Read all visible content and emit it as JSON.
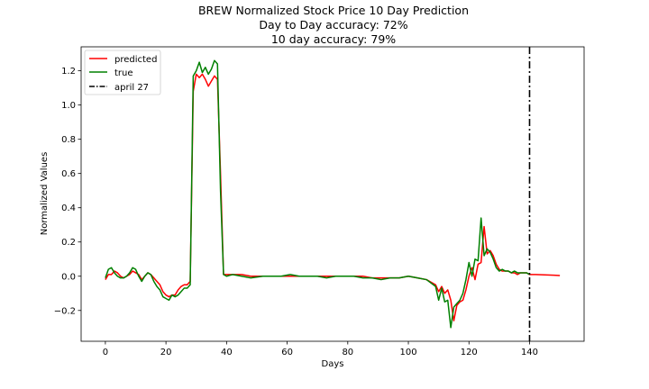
{
  "chart_data": {
    "type": "line",
    "title": "BREW Normalized Stock Price 10 Day Prediction",
    "subtitle_lines": [
      "Day to Day accuracy: 72%",
      "10 day accuracy: 79%"
    ],
    "xlabel": "Days",
    "ylabel": "Normalized Values",
    "xlim": [
      -8,
      158
    ],
    "ylim": [
      -0.38,
      1.34
    ],
    "xticks": [
      0,
      20,
      40,
      60,
      80,
      100,
      120,
      140
    ],
    "yticks": [
      -0.2,
      0.0,
      0.2,
      0.4,
      0.6,
      0.8,
      1.0,
      1.2
    ],
    "ytick_labels": [
      "−0.2",
      "0.0",
      "0.2",
      "0.4",
      "0.6",
      "0.8",
      "1.0",
      "1.2"
    ],
    "grid": false,
    "legend_position": "top-left",
    "series": [
      {
        "name": "predicted",
        "color": "#ff0000",
        "x": [
          0,
          1,
          2,
          3,
          4,
          5,
          6,
          7,
          8,
          9,
          10,
          11,
          12,
          13,
          14,
          15,
          16,
          17,
          18,
          19,
          20,
          21,
          22,
          23,
          24,
          25,
          26,
          27,
          28,
          29,
          30,
          31,
          32,
          33,
          34,
          35,
          36,
          37,
          38,
          39,
          40,
          42,
          45,
          48,
          52,
          55,
          58,
          61,
          64,
          67,
          70,
          73,
          76,
          79,
          82,
          85,
          88,
          91,
          94,
          97,
          100,
          103,
          106,
          109,
          110,
          111,
          112,
          113,
          114,
          115,
          116,
          117,
          118,
          119,
          120,
          121,
          122,
          123,
          124,
          125,
          126,
          127,
          128,
          129,
          130,
          131,
          132,
          133,
          134,
          135,
          136,
          137,
          138,
          139,
          140,
          142,
          145,
          148,
          150
        ],
        "values": [
          -0.02,
          0.01,
          0.01,
          0.03,
          0.02,
          0.0,
          -0.01,
          0.0,
          0.01,
          0.03,
          0.02,
          0.01,
          -0.02,
          0.0,
          0.02,
          0.01,
          -0.01,
          -0.03,
          -0.05,
          -0.09,
          -0.11,
          -0.12,
          -0.11,
          -0.11,
          -0.08,
          -0.06,
          -0.05,
          -0.05,
          -0.03,
          1.08,
          1.18,
          1.16,
          1.18,
          1.15,
          1.11,
          1.14,
          1.17,
          1.15,
          0.6,
          0.01,
          0.01,
          0.01,
          0.01,
          0.0,
          0.0,
          0.0,
          0.0,
          0.0,
          0.0,
          0.0,
          0.0,
          0.0,
          0.0,
          0.0,
          0.0,
          0.0,
          -0.01,
          -0.01,
          -0.01,
          -0.01,
          0.0,
          -0.01,
          -0.02,
          -0.05,
          -0.09,
          -0.06,
          -0.1,
          -0.08,
          -0.14,
          -0.26,
          -0.17,
          -0.15,
          -0.14,
          -0.08,
          0.0,
          0.05,
          -0.02,
          0.07,
          0.08,
          0.29,
          0.13,
          0.15,
          0.12,
          0.07,
          0.04,
          0.03,
          0.03,
          0.03,
          0.02,
          0.02,
          0.01,
          0.02,
          0.02,
          0.02,
          0.01,
          0.01,
          0.008,
          0.006,
          0.004
        ]
      },
      {
        "name": "true",
        "color": "#008000",
        "x": [
          0,
          1,
          2,
          3,
          4,
          5,
          6,
          7,
          8,
          9,
          10,
          11,
          12,
          13,
          14,
          15,
          16,
          17,
          18,
          19,
          20,
          21,
          22,
          23,
          24,
          25,
          26,
          27,
          28,
          29,
          30,
          31,
          32,
          33,
          34,
          35,
          36,
          37,
          38,
          39,
          40,
          42,
          45,
          48,
          52,
          55,
          58,
          61,
          64,
          67,
          70,
          73,
          76,
          79,
          82,
          85,
          88,
          91,
          94,
          97,
          100,
          103,
          106,
          109,
          110,
          111,
          112,
          113,
          114,
          115,
          116,
          117,
          118,
          119,
          120,
          121,
          122,
          123,
          124,
          125,
          126,
          127,
          128,
          129,
          130,
          131,
          132,
          133,
          134,
          135,
          136,
          137,
          138,
          139,
          140
        ],
        "values": [
          -0.01,
          0.04,
          0.05,
          0.02,
          0.0,
          -0.01,
          -0.01,
          0.0,
          0.02,
          0.05,
          0.04,
          0.0,
          -0.03,
          0.0,
          0.02,
          0.01,
          -0.03,
          -0.06,
          -0.08,
          -0.12,
          -0.13,
          -0.14,
          -0.11,
          -0.12,
          -0.11,
          -0.09,
          -0.07,
          -0.07,
          -0.05,
          1.17,
          1.2,
          1.25,
          1.19,
          1.22,
          1.18,
          1.21,
          1.26,
          1.24,
          0.5,
          0.01,
          0.0,
          0.01,
          0.0,
          -0.01,
          0.0,
          0.0,
          0.0,
          0.01,
          0.0,
          0.0,
          0.0,
          -0.01,
          0.0,
          0.0,
          0.0,
          -0.01,
          -0.01,
          -0.02,
          -0.01,
          -0.01,
          0.0,
          -0.01,
          -0.02,
          -0.06,
          -0.14,
          -0.07,
          -0.15,
          -0.14,
          -0.3,
          -0.18,
          -0.16,
          -0.14,
          -0.1,
          -0.02,
          0.08,
          0.0,
          0.1,
          0.09,
          0.34,
          0.12,
          0.16,
          0.14,
          0.1,
          0.05,
          0.03,
          0.04,
          0.03,
          0.03,
          0.02,
          0.03,
          0.02,
          0.02,
          0.02,
          0.02,
          0.01
        ]
      }
    ],
    "vline": {
      "name": "april 27",
      "x": 140,
      "color": "#000000",
      "style": "dash-dot"
    }
  }
}
